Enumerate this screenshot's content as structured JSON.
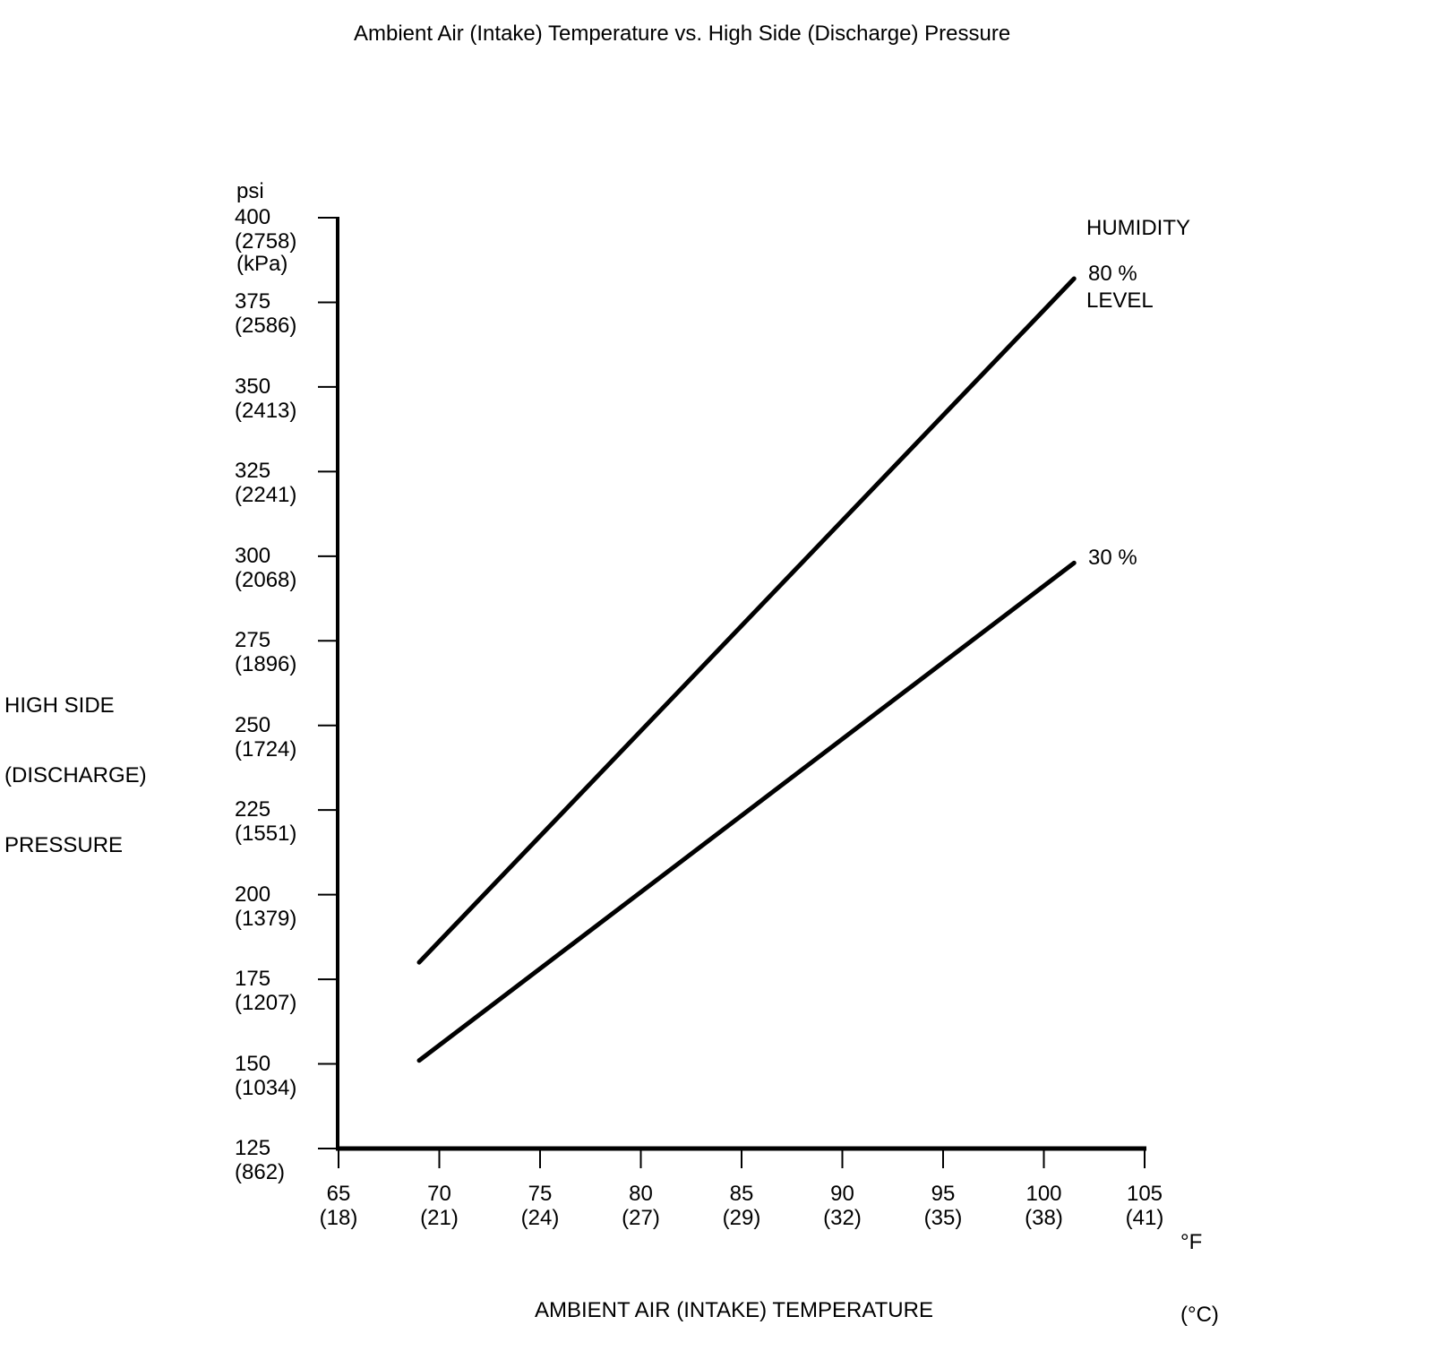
{
  "chart_data": {
    "type": "line",
    "title": "Ambient Air (Intake) Temperature vs. High Side (Discharge) Pressure",
    "xlabel": "AMBIENT AIR (INTAKE) TEMPERATURE",
    "ylabel": "HIGH SIDE (DISCHARGE) PRESSURE",
    "ylabel_lines": [
      "HIGH SIDE",
      "(DISCHARGE)",
      "PRESSURE"
    ],
    "y_unit_lines": [
      "psi",
      "(kPa)"
    ],
    "x_unit_lines": [
      "°F",
      "(°C)"
    ],
    "xlim": [
      65,
      105
    ],
    "ylim": [
      125,
      400
    ],
    "grid": false,
    "background": "#ffffff",
    "line_color": "#000000",
    "legend": {
      "title_lines": [
        "HUMIDITY",
        "LEVEL"
      ],
      "position": "top-right",
      "entries": [
        "80 %",
        "30 %"
      ]
    },
    "y_ticks": [
      {
        "psi": 400,
        "kpa": 2758
      },
      {
        "psi": 375,
        "kpa": 2586
      },
      {
        "psi": 350,
        "kpa": 2413
      },
      {
        "psi": 325,
        "kpa": 2241
      },
      {
        "psi": 300,
        "kpa": 2068
      },
      {
        "psi": 275,
        "kpa": 1896
      },
      {
        "psi": 250,
        "kpa": 1724
      },
      {
        "psi": 225,
        "kpa": 1551
      },
      {
        "psi": 200,
        "kpa": 1379
      },
      {
        "psi": 175,
        "kpa": 1207
      },
      {
        "psi": 150,
        "kpa": 1034
      },
      {
        "psi": 125,
        "kpa": 862
      }
    ],
    "x_ticks": [
      {
        "f": 65,
        "c": 18
      },
      {
        "f": 70,
        "c": 21
      },
      {
        "f": 75,
        "c": 24
      },
      {
        "f": 80,
        "c": 27
      },
      {
        "f": 85,
        "c": 29
      },
      {
        "f": 90,
        "c": 32
      },
      {
        "f": 95,
        "c": 35
      },
      {
        "f": 100,
        "c": 38
      },
      {
        "f": 105,
        "c": 41
      }
    ],
    "series": [
      {
        "name": "80 %",
        "points": [
          [
            69,
            180
          ],
          [
            101.5,
            382
          ]
        ]
      },
      {
        "name": "30 %",
        "points": [
          [
            69,
            151
          ],
          [
            101.5,
            298
          ]
        ]
      }
    ]
  }
}
